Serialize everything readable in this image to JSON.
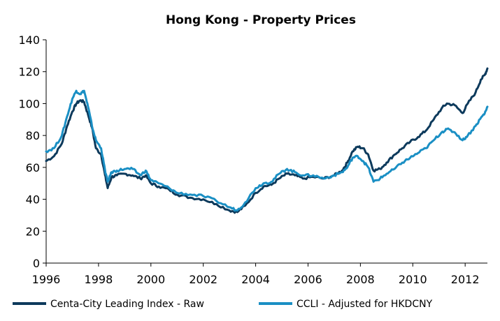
{
  "chart_data": {
    "type": "line",
    "title": "Hong Kong - Property Prices",
    "xlabel": "",
    "ylabel": "",
    "xlim": [
      1996,
      2012.85
    ],
    "ylim": [
      0,
      140
    ],
    "x_ticks": [
      1996,
      1998,
      2000,
      2002,
      2004,
      2006,
      2008,
      2010,
      2012
    ],
    "x_tick_labels": [
      "1996",
      "1998",
      "2000",
      "2002",
      "2004",
      "2006",
      "2008",
      "2010",
      "2012"
    ],
    "y_ticks": [
      0,
      20,
      40,
      60,
      80,
      100,
      120,
      140
    ],
    "y_tick_labels": [
      "0",
      "20",
      "40",
      "60",
      "80",
      "100",
      "120",
      "140"
    ],
    "grid": false,
    "legend_position": "bottom",
    "series": [
      {
        "name": "Centa-City Leading Index - Raw",
        "color": "#0d3a5c",
        "points": [
          [
            1996.0,
            64
          ],
          [
            1996.3,
            67
          ],
          [
            1996.6,
            75
          ],
          [
            1996.8,
            86
          ],
          [
            1997.0,
            95
          ],
          [
            1997.15,
            100
          ],
          [
            1997.3,
            102
          ],
          [
            1997.45,
            101
          ],
          [
            1997.6,
            93
          ],
          [
            1997.75,
            85
          ],
          [
            1997.9,
            72
          ],
          [
            1998.1,
            68
          ],
          [
            1998.25,
            55
          ],
          [
            1998.35,
            47
          ],
          [
            1998.5,
            54
          ],
          [
            1998.7,
            55
          ],
          [
            1999.0,
            56
          ],
          [
            1999.3,
            55
          ],
          [
            1999.6,
            53
          ],
          [
            1999.8,
            55
          ],
          [
            2000.0,
            50
          ],
          [
            2000.3,
            48
          ],
          [
            2000.7,
            46
          ],
          [
            2001.0,
            43
          ],
          [
            2001.5,
            41
          ],
          [
            2002.0,
            40
          ],
          [
            2002.5,
            37
          ],
          [
            2003.0,
            33
          ],
          [
            2003.3,
            32
          ],
          [
            2003.6,
            36
          ],
          [
            2004.0,
            44
          ],
          [
            2004.3,
            48
          ],
          [
            2004.6,
            49
          ],
          [
            2004.9,
            53
          ],
          [
            2005.2,
            56
          ],
          [
            2005.5,
            55
          ],
          [
            2005.8,
            53
          ],
          [
            2006.2,
            54
          ],
          [
            2006.6,
            53
          ],
          [
            2007.0,
            55
          ],
          [
            2007.3,
            58
          ],
          [
            2007.5,
            63
          ],
          [
            2007.7,
            70
          ],
          [
            2007.9,
            73
          ],
          [
            2008.1,
            72
          ],
          [
            2008.3,
            68
          ],
          [
            2008.5,
            58
          ],
          [
            2008.75,
            59
          ],
          [
            2009.0,
            63
          ],
          [
            2009.3,
            68
          ],
          [
            2009.6,
            72
          ],
          [
            2009.9,
            76
          ],
          [
            2010.2,
            79
          ],
          [
            2010.5,
            83
          ],
          [
            2010.8,
            90
          ],
          [
            2011.1,
            97
          ],
          [
            2011.3,
            100
          ],
          [
            2011.6,
            99
          ],
          [
            2011.9,
            94
          ],
          [
            2012.1,
            100
          ],
          [
            2012.4,
            107
          ],
          [
            2012.6,
            115
          ],
          [
            2012.75,
            118
          ],
          [
            2012.85,
            122
          ]
        ]
      },
      {
        "name": "CCLI - Adjusted for HKDCNY",
        "color": "#1a8fc4",
        "points": [
          [
            1996.0,
            70
          ],
          [
            1996.3,
            72
          ],
          [
            1996.6,
            80
          ],
          [
            1996.8,
            92
          ],
          [
            1997.0,
            103
          ],
          [
            1997.15,
            108
          ],
          [
            1997.3,
            106
          ],
          [
            1997.45,
            108
          ],
          [
            1997.6,
            98
          ],
          [
            1997.75,
            86
          ],
          [
            1997.9,
            77
          ],
          [
            1998.1,
            72
          ],
          [
            1998.25,
            58
          ],
          [
            1998.35,
            51
          ],
          [
            1998.5,
            57
          ],
          [
            1998.7,
            58
          ],
          [
            1999.0,
            59
          ],
          [
            1999.3,
            59
          ],
          [
            1999.6,
            55
          ],
          [
            1999.8,
            58
          ],
          [
            2000.0,
            52
          ],
          [
            2000.3,
            50
          ],
          [
            2000.7,
            47
          ],
          [
            2001.0,
            44
          ],
          [
            2001.5,
            43
          ],
          [
            2002.0,
            42
          ],
          [
            2002.5,
            39
          ],
          [
            2003.0,
            35
          ],
          [
            2003.3,
            33
          ],
          [
            2003.6,
            38
          ],
          [
            2004.0,
            47
          ],
          [
            2004.3,
            50
          ],
          [
            2004.6,
            51
          ],
          [
            2004.9,
            56
          ],
          [
            2005.2,
            59
          ],
          [
            2005.5,
            57
          ],
          [
            2005.8,
            55
          ],
          [
            2006.2,
            55
          ],
          [
            2006.6,
            53
          ],
          [
            2007.0,
            55
          ],
          [
            2007.3,
            57
          ],
          [
            2007.5,
            60
          ],
          [
            2007.7,
            66
          ],
          [
            2007.9,
            67
          ],
          [
            2008.1,
            64
          ],
          [
            2008.3,
            60
          ],
          [
            2008.5,
            51
          ],
          [
            2008.75,
            53
          ],
          [
            2009.0,
            56
          ],
          [
            2009.3,
            59
          ],
          [
            2009.6,
            63
          ],
          [
            2009.9,
            66
          ],
          [
            2010.2,
            69
          ],
          [
            2010.5,
            72
          ],
          [
            2010.8,
            77
          ],
          [
            2011.1,
            82
          ],
          [
            2011.3,
            84
          ],
          [
            2011.6,
            82
          ],
          [
            2011.9,
            77
          ],
          [
            2012.1,
            80
          ],
          [
            2012.4,
            86
          ],
          [
            2012.6,
            91
          ],
          [
            2012.75,
            94
          ],
          [
            2012.85,
            98
          ]
        ]
      }
    ]
  }
}
